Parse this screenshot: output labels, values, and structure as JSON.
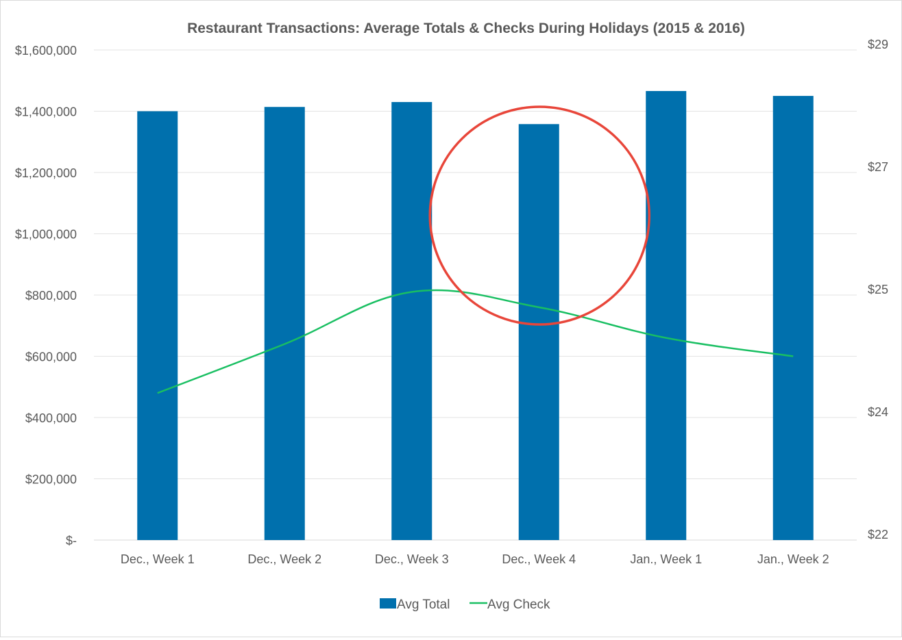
{
  "chart_data": {
    "type": "bar",
    "title": "Restaurant Transactions: Average Totals & Checks During Holidays (2015 & 2016)",
    "categories": [
      "Dec., Week 1",
      "Dec., Week 2",
      "Dec., Week 3",
      "Dec., Week 4",
      "Jan., Week 1",
      "Jan., Week 2"
    ],
    "series": [
      {
        "name": "Avg Total",
        "type": "bar",
        "axis": "left",
        "color": "#0070AD",
        "values": [
          1400000,
          1414000,
          1430000,
          1358000,
          1466000,
          1450000
        ]
      },
      {
        "name": "Avg Check",
        "type": "line",
        "axis": "right",
        "color": "#19BF62",
        "values": [
          24.2,
          24.6,
          25.05,
          24.9,
          24.65,
          24.5
        ]
      }
    ],
    "y_left": {
      "ticks": [
        0,
        200000,
        400000,
        600000,
        800000,
        1000000,
        1200000,
        1400000,
        1600000
      ],
      "tick_labels": [
        "$-",
        "$200,000",
        "$400,000",
        "$600,000",
        "$800,000",
        "$1,000,000",
        "$1,200,000",
        "$1,400,000",
        "$1,600,000"
      ],
      "ylim": [
        0,
        1600000
      ]
    },
    "y_right": {
      "ticks": [
        22,
        24,
        25,
        27,
        29
      ],
      "tick_labels": [
        "$22",
        "$24",
        "$25",
        "$27",
        "$29"
      ],
      "tick_fractions": [
        0,
        0.25,
        0.5,
        0.75,
        1
      ]
    },
    "legend": {
      "position": "bottom",
      "entries": [
        "Avg Total",
        "Avg Check"
      ]
    },
    "grid": true,
    "annotation": {
      "shape": "circle",
      "color": "#E8463A",
      "category": "Dec., Week 4"
    }
  }
}
